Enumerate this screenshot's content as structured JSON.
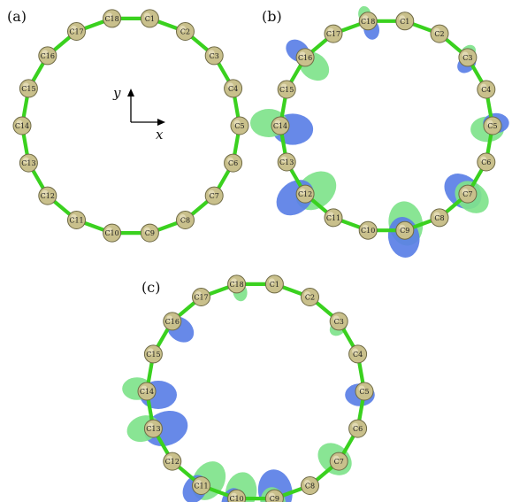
{
  "colors": {
    "atom_fill": "#c9c08c",
    "atom_stroke": "#6f6a45",
    "bond": "#3ad11f",
    "lobe_blue": "#5a7fe6",
    "lobe_green": "#7fe38b",
    "axis": "#000000"
  },
  "axes": {
    "x": "x",
    "y": "y"
  },
  "panels": [
    {
      "label": "(a)",
      "atoms": [
        "C1",
        "C2",
        "C3",
        "C4",
        "C5",
        "C6",
        "C7",
        "C8",
        "C9",
        "C10",
        "C11",
        "C12",
        "C13",
        "C14",
        "C15",
        "C16",
        "C17",
        "C18"
      ],
      "lobes": []
    },
    {
      "label": "(b)",
      "atoms": [
        "C1",
        "C2",
        "C3",
        "C4",
        "C5",
        "C6",
        "C7",
        "C8",
        "C9",
        "C10",
        "C11",
        "C12",
        "C13",
        "C14",
        "C15",
        "C16",
        "C17",
        "C18"
      ],
      "lobes": [
        {
          "atom": "C3",
          "color": "blue",
          "size": 0.55
        },
        {
          "atom": "C3",
          "color": "green",
          "size": 0.45
        },
        {
          "atom": "C18",
          "color": "blue",
          "size": 0.55
        },
        {
          "atom": "C18",
          "color": "green",
          "size": 0.45
        },
        {
          "atom": "C5",
          "color": "green",
          "size": 0.9
        },
        {
          "atom": "C5",
          "color": "blue",
          "size": 0.7
        },
        {
          "atom": "C16",
          "color": "green",
          "size": 0.9
        },
        {
          "atom": "C16",
          "color": "blue",
          "size": 0.7
        },
        {
          "atom": "C7",
          "color": "blue",
          "size": 1.1
        },
        {
          "atom": "C7",
          "color": "green",
          "size": 1.0
        },
        {
          "atom": "C14",
          "color": "blue",
          "size": 1.1
        },
        {
          "atom": "C14",
          "color": "green",
          "size": 1.0
        },
        {
          "atom": "C9",
          "color": "green",
          "size": 1.2
        },
        {
          "atom": "C9",
          "color": "blue",
          "size": 1.1
        },
        {
          "atom": "C12",
          "color": "green",
          "size": 1.2
        },
        {
          "atom": "C12",
          "color": "blue",
          "size": 1.1
        }
      ]
    },
    {
      "label": "(c)",
      "atoms": [
        "C1",
        "C2",
        "C3",
        "C4",
        "C5",
        "C6",
        "C7",
        "C8",
        "C9",
        "C10",
        "C11",
        "C12",
        "C13",
        "C14",
        "C15",
        "C16",
        "C17",
        "C18"
      ],
      "lobes": [
        {
          "atom": "C3",
          "color": "green",
          "size": 0.5
        },
        {
          "atom": "C18",
          "color": "green",
          "size": 0.5
        },
        {
          "atom": "C5",
          "color": "blue",
          "size": 0.8
        },
        {
          "atom": "C16",
          "color": "blue",
          "size": 0.8
        },
        {
          "atom": "C7",
          "color": "green",
          "size": 1.0
        },
        {
          "atom": "C14",
          "color": "blue",
          "size": 1.0
        },
        {
          "atom": "C14",
          "color": "green",
          "size": 0.8
        },
        {
          "atom": "C9",
          "color": "blue",
          "size": 1.2
        },
        {
          "atom": "C9",
          "color": "green",
          "size": 0.9
        },
        {
          "atom": "C13",
          "color": "blue",
          "size": 1.2
        },
        {
          "atom": "C13",
          "color": "green",
          "size": 0.9
        },
        {
          "atom": "C10",
          "color": "green",
          "size": 1.1
        },
        {
          "atom": "C10",
          "color": "blue",
          "size": 0.8
        },
        {
          "atom": "C11",
          "color": "green",
          "size": 1.1
        },
        {
          "atom": "C11",
          "color": "blue",
          "size": 0.8
        }
      ]
    }
  ]
}
